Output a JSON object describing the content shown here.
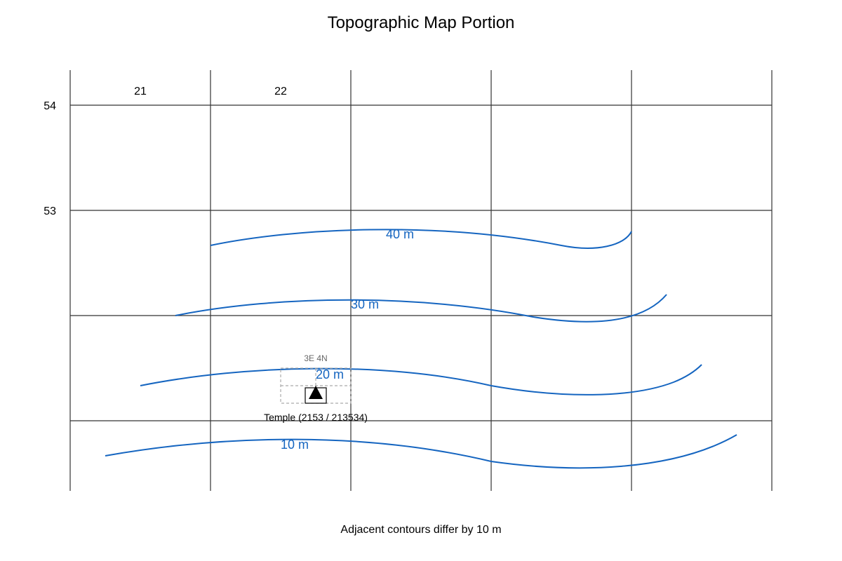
{
  "title": "Topographic Map Portion",
  "caption": "Adjacent contours differ by 10 m",
  "grid": {
    "easting_labels": [
      "21",
      "22"
    ],
    "northing_labels": [
      "54",
      "53"
    ]
  },
  "contours": [
    {
      "label": "40 m",
      "elevation": 40
    },
    {
      "label": "30 m",
      "elevation": 30
    },
    {
      "label": "20 m",
      "elevation": 20
    },
    {
      "label": "10 m",
      "elevation": 10
    }
  ],
  "subgrid_label": "3E 4N",
  "landmark": {
    "icon": "triangle-icon",
    "label": "Temple (2153 / 213534)"
  },
  "colors": {
    "contour": "#1565c0",
    "grid": "#333333",
    "subgrid": "#aaaaaa"
  }
}
